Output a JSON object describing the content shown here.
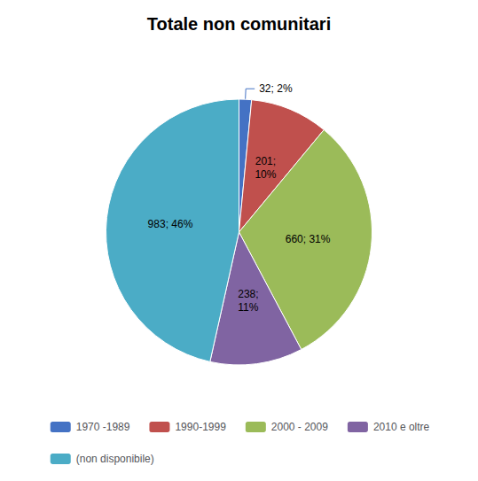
{
  "chart_data": {
    "type": "pie",
    "title": "Totale non comunitari",
    "categories": [
      "1970 -1989",
      "1990-1999",
      "2000 - 2009",
      "2010 e oltre",
      "(non disponibile)"
    ],
    "values": [
      32,
      201,
      660,
      238,
      983
    ],
    "value_labels": [
      "32; 2%",
      "201;\n10%",
      "660; 31%",
      "238;\n11%",
      "983; 46%"
    ],
    "colors": [
      "#4472C4",
      "#C0504D",
      "#9BBB59",
      "#8064A2",
      "#4BACC6"
    ],
    "data_labels": true,
    "legend": "bottom"
  }
}
